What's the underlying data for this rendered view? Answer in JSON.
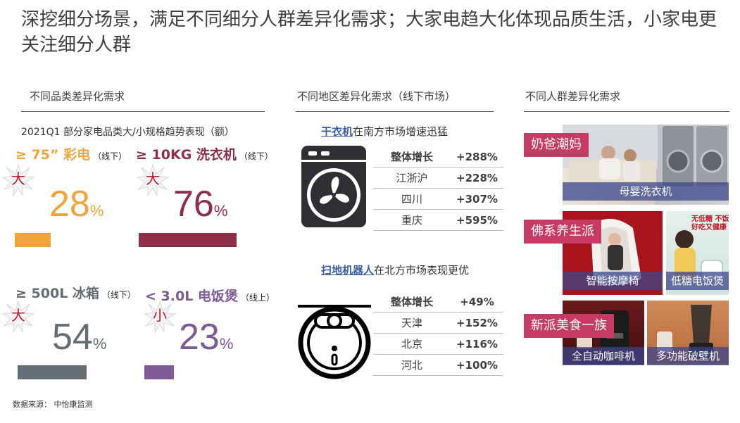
{
  "title": "深挖细分场景，满足不同细分人群差异化需求；大家电趋大化体现品质生活，小家电更关注细分人群",
  "left": {
    "heading": "不同品类差异化需求",
    "subtitle": "2021Q1 部分家电品类大/小规格趋势表现（额）",
    "items": [
      {
        "label": "≥ 75” 彩电",
        "channel": "（线下）",
        "badge": "大",
        "value": "28",
        "unit": "%",
        "color": "#f0a43a",
        "share": 0.28
      },
      {
        "label": "≥ 10KG 洗衣机",
        "channel": "（线下）",
        "badge": "大",
        "value": "76",
        "unit": "%",
        "color": "#8e2e48",
        "share": 0.76
      },
      {
        "label": "≥ 500L 冰箱",
        "channel": "（线下）",
        "badge": "大",
        "value": "54",
        "unit": "%",
        "color": "#646d72",
        "share": 0.54
      },
      {
        "label": "< 3.0L 电饭煲",
        "channel": "（线上）",
        "badge": "小",
        "value": "23",
        "unit": "%",
        "color": "#7d5c95",
        "share": 0.23
      }
    ]
  },
  "middle": {
    "heading": "不同地区差异化需求（线下市场）",
    "dryer": {
      "product": "干衣机",
      "headline_rest": "在南方市场增速迅猛",
      "rows": [
        [
          "整体增长",
          "+288%"
        ],
        [
          "江浙沪",
          "+228%"
        ],
        [
          "四川",
          "+307%"
        ],
        [
          "重庆",
          "+595%"
        ]
      ]
    },
    "robot": {
      "product": "扫地机器人",
      "headline_rest": "在北方市场表现更优",
      "rows": [
        [
          "整体增长",
          "+49%"
        ],
        [
          "天津",
          "+152%"
        ],
        [
          "北京",
          "+116%"
        ],
        [
          "河北",
          "+100%"
        ]
      ]
    }
  },
  "right": {
    "heading": "不同人群差异化需求",
    "groups": [
      {
        "tag": "奶爸潮妈",
        "captions": [
          "母婴洗衣机"
        ]
      },
      {
        "tag": "佛系养生派",
        "captions": [
          "智能按摩椅",
          "低糖电饭煲"
        ],
        "poster_text": [
          "无低糖 不饭煲",
          "好吃又健康"
        ]
      },
      {
        "tag": "新派美食一族",
        "captions": [
          "全自动咖啡机",
          "多功能破壁机"
        ]
      }
    ]
  },
  "source": "数据来源：  中怡康监测"
}
